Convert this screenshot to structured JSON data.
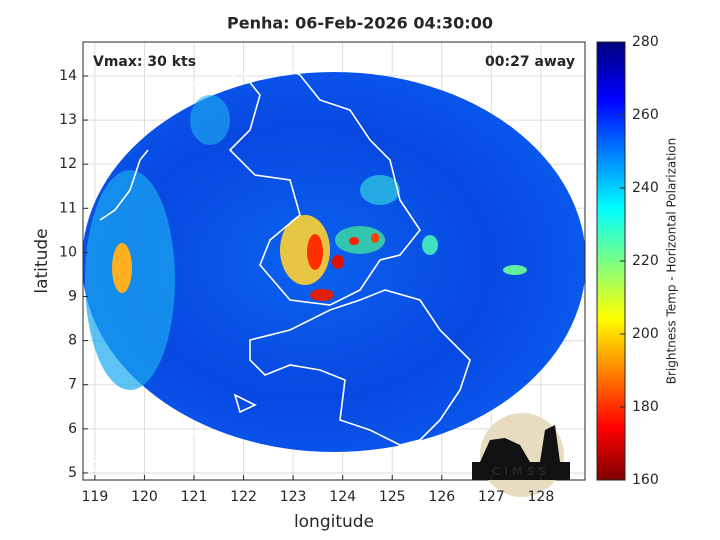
{
  "chart_data": {
    "type": "map",
    "title": "Penha: 06-Feb-2026 04:30:00",
    "annotations": [
      "Vmax: 30 kts",
      "00:27 away"
    ],
    "xlabel": "longitude",
    "ylabel": "latitude",
    "xlim": [
      118.76,
      128.89
    ],
    "xticks": [
      119,
      120,
      121,
      122,
      123,
      124,
      125,
      126,
      127,
      128
    ],
    "ylim": [
      4.84,
      14.77
    ],
    "yticks": [
      5,
      6,
      7,
      8,
      9,
      10,
      11,
      12,
      13,
      14
    ],
    "grid": true,
    "colorbar": {
      "label": "Brightness Temp - Horizontal Polarization",
      "lim": [
        160,
        280
      ],
      "ticks": [
        160,
        180,
        200,
        220,
        240,
        260,
        280
      ]
    },
    "logo": "CIMSS"
  }
}
